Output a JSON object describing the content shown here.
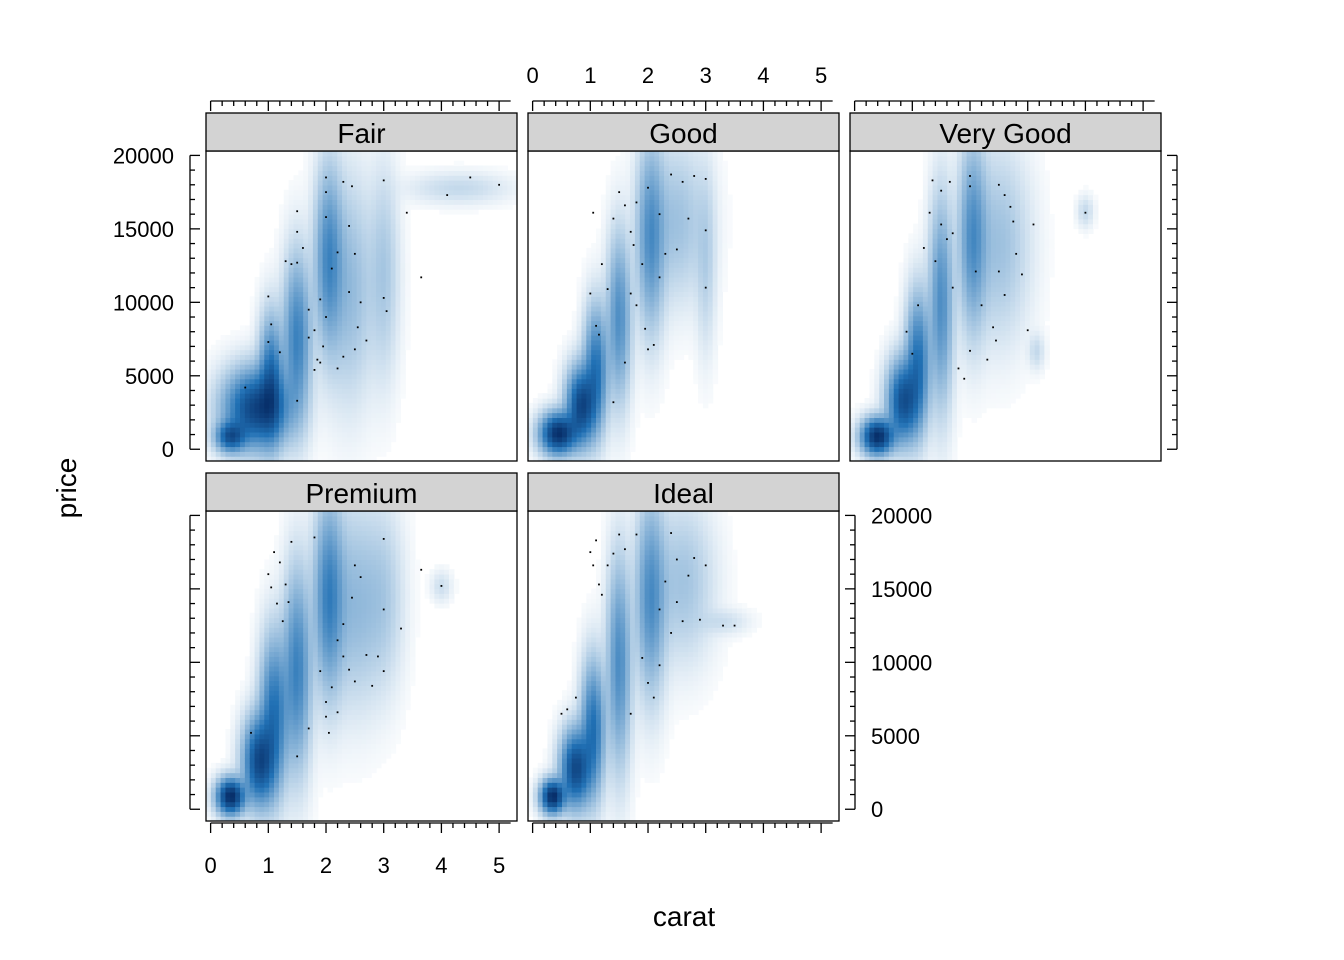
{
  "chart_data": {
    "type": "scatter",
    "subtype": "smoothed density scatter (lattice xyplot with panel.smoothScatter)",
    "xlabel": "carat",
    "ylabel": "price",
    "xlim": [
      -0.08,
      5.31
    ],
    "ylim": [
      -800,
      20300
    ],
    "x_ticks": [
      0,
      1,
      2,
      3,
      4,
      5
    ],
    "y_ticks": [
      0,
      5000,
      10000,
      15000,
      20000
    ],
    "grid": false,
    "legend": "none",
    "colors": {
      "density_low": "#ffffff",
      "density_high": "#08306b",
      "strip": "#d3d3d3",
      "outlier_points": "#000000"
    },
    "layout": {
      "columns": 3,
      "rows": 2
    },
    "panels": [
      {
        "name": "Fair",
        "density_clusters": [
          {
            "x": 0.8,
            "y": 2800,
            "sx": 0.32,
            "sy": 1500,
            "w": 1.0
          },
          {
            "x": 0.35,
            "y": 900,
            "sx": 0.15,
            "sy": 600,
            "w": 0.8
          },
          {
            "x": 1.05,
            "y": 4800,
            "sx": 0.12,
            "sy": 2400,
            "w": 0.6
          },
          {
            "x": 1.5,
            "y": 7500,
            "sx": 0.14,
            "sy": 3200,
            "w": 0.45
          },
          {
            "x": 2.05,
            "y": 13000,
            "sx": 0.14,
            "sy": 3500,
            "w": 0.4
          },
          {
            "x": 2.4,
            "y": 11000,
            "sx": 0.25,
            "sy": 4200,
            "w": 0.15
          },
          {
            "x": 3.0,
            "y": 12000,
            "sx": 0.15,
            "sy": 4000,
            "w": 0.1
          },
          {
            "x": 4.3,
            "y": 17800,
            "sx": 0.5,
            "sy": 600,
            "w": 0.05
          }
        ],
        "points": [
          [
            0.6,
            4200
          ],
          [
            1.0,
            7300
          ],
          [
            1.0,
            10400
          ],
          [
            1.05,
            8500
          ],
          [
            1.2,
            6600
          ],
          [
            1.3,
            12800
          ],
          [
            1.4,
            12600
          ],
          [
            1.5,
            3300
          ],
          [
            1.5,
            12700
          ],
          [
            1.5,
            14800
          ],
          [
            1.5,
            16200
          ],
          [
            1.6,
            13700
          ],
          [
            1.7,
            7600
          ],
          [
            1.7,
            9500
          ],
          [
            1.8,
            8100
          ],
          [
            1.8,
            5400
          ],
          [
            1.85,
            6100
          ],
          [
            1.9,
            5900
          ],
          [
            1.9,
            10200
          ],
          [
            1.95,
            7000
          ],
          [
            2.0,
            18500
          ],
          [
            2.0,
            17500
          ],
          [
            2.0,
            15800
          ],
          [
            2.0,
            9000
          ],
          [
            2.1,
            12300
          ],
          [
            2.2,
            5500
          ],
          [
            2.2,
            13400
          ],
          [
            2.3,
            18200
          ],
          [
            2.3,
            6300
          ],
          [
            2.4,
            15200
          ],
          [
            2.4,
            10700
          ],
          [
            2.45,
            17900
          ],
          [
            2.5,
            13300
          ],
          [
            2.5,
            6800
          ],
          [
            2.55,
            8300
          ],
          [
            2.6,
            10000
          ],
          [
            2.7,
            7400
          ],
          [
            3.0,
            18300
          ],
          [
            3.0,
            10300
          ],
          [
            3.05,
            9400
          ],
          [
            3.4,
            16100
          ],
          [
            3.65,
            11700
          ],
          [
            4.1,
            17300
          ],
          [
            4.5,
            18500
          ],
          [
            5.0,
            18000
          ]
        ]
      },
      {
        "name": "Good",
        "density_clusters": [
          {
            "x": 0.45,
            "y": 1100,
            "sx": 0.18,
            "sy": 800,
            "w": 1.0
          },
          {
            "x": 0.85,
            "y": 3000,
            "sx": 0.15,
            "sy": 1500,
            "w": 0.8
          },
          {
            "x": 1.1,
            "y": 5500,
            "sx": 0.12,
            "sy": 2400,
            "w": 0.45
          },
          {
            "x": 1.5,
            "y": 9000,
            "sx": 0.12,
            "sy": 3200,
            "w": 0.3
          },
          {
            "x": 2.05,
            "y": 14500,
            "sx": 0.14,
            "sy": 3600,
            "w": 0.3
          },
          {
            "x": 2.5,
            "y": 15500,
            "sx": 0.3,
            "sy": 3000,
            "w": 0.1
          },
          {
            "x": 3.0,
            "y": 13000,
            "sx": 0.1,
            "sy": 3500,
            "w": 0.06
          }
        ],
        "points": [
          [
            1.0,
            10600
          ],
          [
            1.05,
            16100
          ],
          [
            1.1,
            8400
          ],
          [
            1.15,
            7800
          ],
          [
            1.2,
            12600
          ],
          [
            1.3,
            10900
          ],
          [
            1.4,
            3200
          ],
          [
            1.4,
            15700
          ],
          [
            1.5,
            17500
          ],
          [
            1.6,
            5900
          ],
          [
            1.6,
            16600
          ],
          [
            1.7,
            10600
          ],
          [
            1.7,
            14800
          ],
          [
            1.75,
            13900
          ],
          [
            1.8,
            16800
          ],
          [
            1.8,
            9800
          ],
          [
            1.9,
            12600
          ],
          [
            1.95,
            8200
          ],
          [
            2.0,
            17800
          ],
          [
            2.0,
            6800
          ],
          [
            2.1,
            7100
          ],
          [
            2.2,
            16000
          ],
          [
            2.2,
            11700
          ],
          [
            2.3,
            13300
          ],
          [
            2.4,
            18700
          ],
          [
            2.5,
            13600
          ],
          [
            2.6,
            18200
          ],
          [
            2.7,
            15700
          ],
          [
            2.8,
            18600
          ],
          [
            3.0,
            18400
          ],
          [
            3.0,
            14900
          ],
          [
            3.0,
            11000
          ]
        ]
      },
      {
        "name": "Very Good",
        "density_clusters": [
          {
            "x": 0.4,
            "y": 900,
            "sx": 0.16,
            "sy": 700,
            "w": 1.0
          },
          {
            "x": 0.85,
            "y": 3300,
            "sx": 0.16,
            "sy": 1600,
            "w": 0.7
          },
          {
            "x": 1.1,
            "y": 6000,
            "sx": 0.12,
            "sy": 2600,
            "w": 0.45
          },
          {
            "x": 1.5,
            "y": 10000,
            "sx": 0.12,
            "sy": 4000,
            "w": 0.3
          },
          {
            "x": 2.05,
            "y": 14500,
            "sx": 0.14,
            "sy": 3600,
            "w": 0.3
          },
          {
            "x": 2.5,
            "y": 14000,
            "sx": 0.3,
            "sy": 3600,
            "w": 0.1
          },
          {
            "x": 4.0,
            "y": 16200,
            "sx": 0.08,
            "sy": 600,
            "w": 0.04
          },
          {
            "x": 3.15,
            "y": 6700,
            "sx": 0.08,
            "sy": 700,
            "w": 0.04
          }
        ],
        "points": [
          [
            0.9,
            8000
          ],
          [
            1.0,
            6500
          ],
          [
            1.1,
            9800
          ],
          [
            1.2,
            13700
          ],
          [
            1.3,
            16100
          ],
          [
            1.35,
            18300
          ],
          [
            1.4,
            12800
          ],
          [
            1.5,
            15300
          ],
          [
            1.5,
            17600
          ],
          [
            1.6,
            14300
          ],
          [
            1.65,
            18200
          ],
          [
            1.7,
            11000
          ],
          [
            1.7,
            14700
          ],
          [
            1.8,
            5500
          ],
          [
            1.9,
            4800
          ],
          [
            2.0,
            18600
          ],
          [
            2.0,
            17900
          ],
          [
            2.0,
            6700
          ],
          [
            2.1,
            12100
          ],
          [
            2.2,
            9800
          ],
          [
            2.3,
            6100
          ],
          [
            2.4,
            8300
          ],
          [
            2.45,
            7400
          ],
          [
            2.5,
            18000
          ],
          [
            2.5,
            12100
          ],
          [
            2.6,
            17300
          ],
          [
            2.6,
            10500
          ],
          [
            2.7,
            16500
          ],
          [
            2.75,
            15500
          ],
          [
            2.8,
            13300
          ],
          [
            2.9,
            11900
          ],
          [
            3.0,
            8100
          ],
          [
            3.1,
            15300
          ],
          [
            4.0,
            16100
          ]
        ]
      },
      {
        "name": "Premium",
        "density_clusters": [
          {
            "x": 0.35,
            "y": 900,
            "sx": 0.14,
            "sy": 700,
            "w": 1.0
          },
          {
            "x": 0.85,
            "y": 3300,
            "sx": 0.16,
            "sy": 1700,
            "w": 0.75
          },
          {
            "x": 1.1,
            "y": 6500,
            "sx": 0.14,
            "sy": 3000,
            "w": 0.45
          },
          {
            "x": 1.5,
            "y": 9500,
            "sx": 0.14,
            "sy": 3800,
            "w": 0.35
          },
          {
            "x": 2.05,
            "y": 14500,
            "sx": 0.15,
            "sy": 3700,
            "w": 0.35
          },
          {
            "x": 2.5,
            "y": 14000,
            "sx": 0.3,
            "sy": 3800,
            "w": 0.12
          },
          {
            "x": 3.0,
            "y": 14500,
            "sx": 0.2,
            "sy": 3500,
            "w": 0.06
          },
          {
            "x": 4.0,
            "y": 15200,
            "sx": 0.1,
            "sy": 600,
            "w": 0.03
          }
        ],
        "points": [
          [
            0.7,
            5200
          ],
          [
            1.0,
            16000
          ],
          [
            1.05,
            15100
          ],
          [
            1.1,
            17500
          ],
          [
            1.15,
            14000
          ],
          [
            1.2,
            16800
          ],
          [
            1.25,
            12800
          ],
          [
            1.3,
            15300
          ],
          [
            1.35,
            14100
          ],
          [
            1.4,
            18200
          ],
          [
            1.5,
            3600
          ],
          [
            1.7,
            5500
          ],
          [
            1.8,
            18500
          ],
          [
            1.9,
            9400
          ],
          [
            2.0,
            7300
          ],
          [
            2.0,
            6300
          ],
          [
            2.05,
            5200
          ],
          [
            2.1,
            8300
          ],
          [
            2.2,
            11500
          ],
          [
            2.2,
            6600
          ],
          [
            2.3,
            12600
          ],
          [
            2.3,
            10400
          ],
          [
            2.4,
            9500
          ],
          [
            2.45,
            14400
          ],
          [
            2.5,
            16600
          ],
          [
            2.5,
            8700
          ],
          [
            2.6,
            15800
          ],
          [
            2.7,
            10500
          ],
          [
            2.8,
            8400
          ],
          [
            2.9,
            10400
          ],
          [
            3.0,
            18400
          ],
          [
            3.0,
            13600
          ],
          [
            3.0,
            9400
          ],
          [
            3.3,
            12300
          ],
          [
            3.65,
            16300
          ],
          [
            4.0,
            15200
          ]
        ]
      },
      {
        "name": "Ideal",
        "density_clusters": [
          {
            "x": 0.35,
            "y": 900,
            "sx": 0.12,
            "sy": 650,
            "w": 1.0
          },
          {
            "x": 0.75,
            "y": 2800,
            "sx": 0.15,
            "sy": 1500,
            "w": 0.75
          },
          {
            "x": 1.05,
            "y": 5500,
            "sx": 0.12,
            "sy": 2600,
            "w": 0.45
          },
          {
            "x": 1.5,
            "y": 10000,
            "sx": 0.12,
            "sy": 4000,
            "w": 0.3
          },
          {
            "x": 2.05,
            "y": 14500,
            "sx": 0.15,
            "sy": 3700,
            "w": 0.3
          },
          {
            "x": 2.6,
            "y": 15500,
            "sx": 0.3,
            "sy": 3000,
            "w": 0.09
          },
          {
            "x": 3.3,
            "y": 12800,
            "sx": 0.25,
            "sy": 500,
            "w": 0.03
          }
        ],
        "points": [
          [
            0.5,
            6500
          ],
          [
            0.6,
            6800
          ],
          [
            0.75,
            7600
          ],
          [
            1.0,
            17500
          ],
          [
            1.05,
            16600
          ],
          [
            1.1,
            18300
          ],
          [
            1.15,
            15300
          ],
          [
            1.2,
            14600
          ],
          [
            1.3,
            16600
          ],
          [
            1.4,
            17400
          ],
          [
            1.5,
            18700
          ],
          [
            1.6,
            17700
          ],
          [
            1.7,
            6500
          ],
          [
            1.8,
            18700
          ],
          [
            1.9,
            10300
          ],
          [
            2.0,
            8600
          ],
          [
            2.1,
            7600
          ],
          [
            2.2,
            13600
          ],
          [
            2.2,
            9800
          ],
          [
            2.3,
            15500
          ],
          [
            2.4,
            12000
          ],
          [
            2.4,
            18800
          ],
          [
            2.5,
            14100
          ],
          [
            2.5,
            17000
          ],
          [
            2.6,
            12800
          ],
          [
            2.7,
            15900
          ],
          [
            2.8,
            17100
          ],
          [
            2.9,
            12900
          ],
          [
            3.0,
            16600
          ],
          [
            3.3,
            12500
          ],
          [
            3.5,
            12500
          ]
        ]
      }
    ]
  }
}
